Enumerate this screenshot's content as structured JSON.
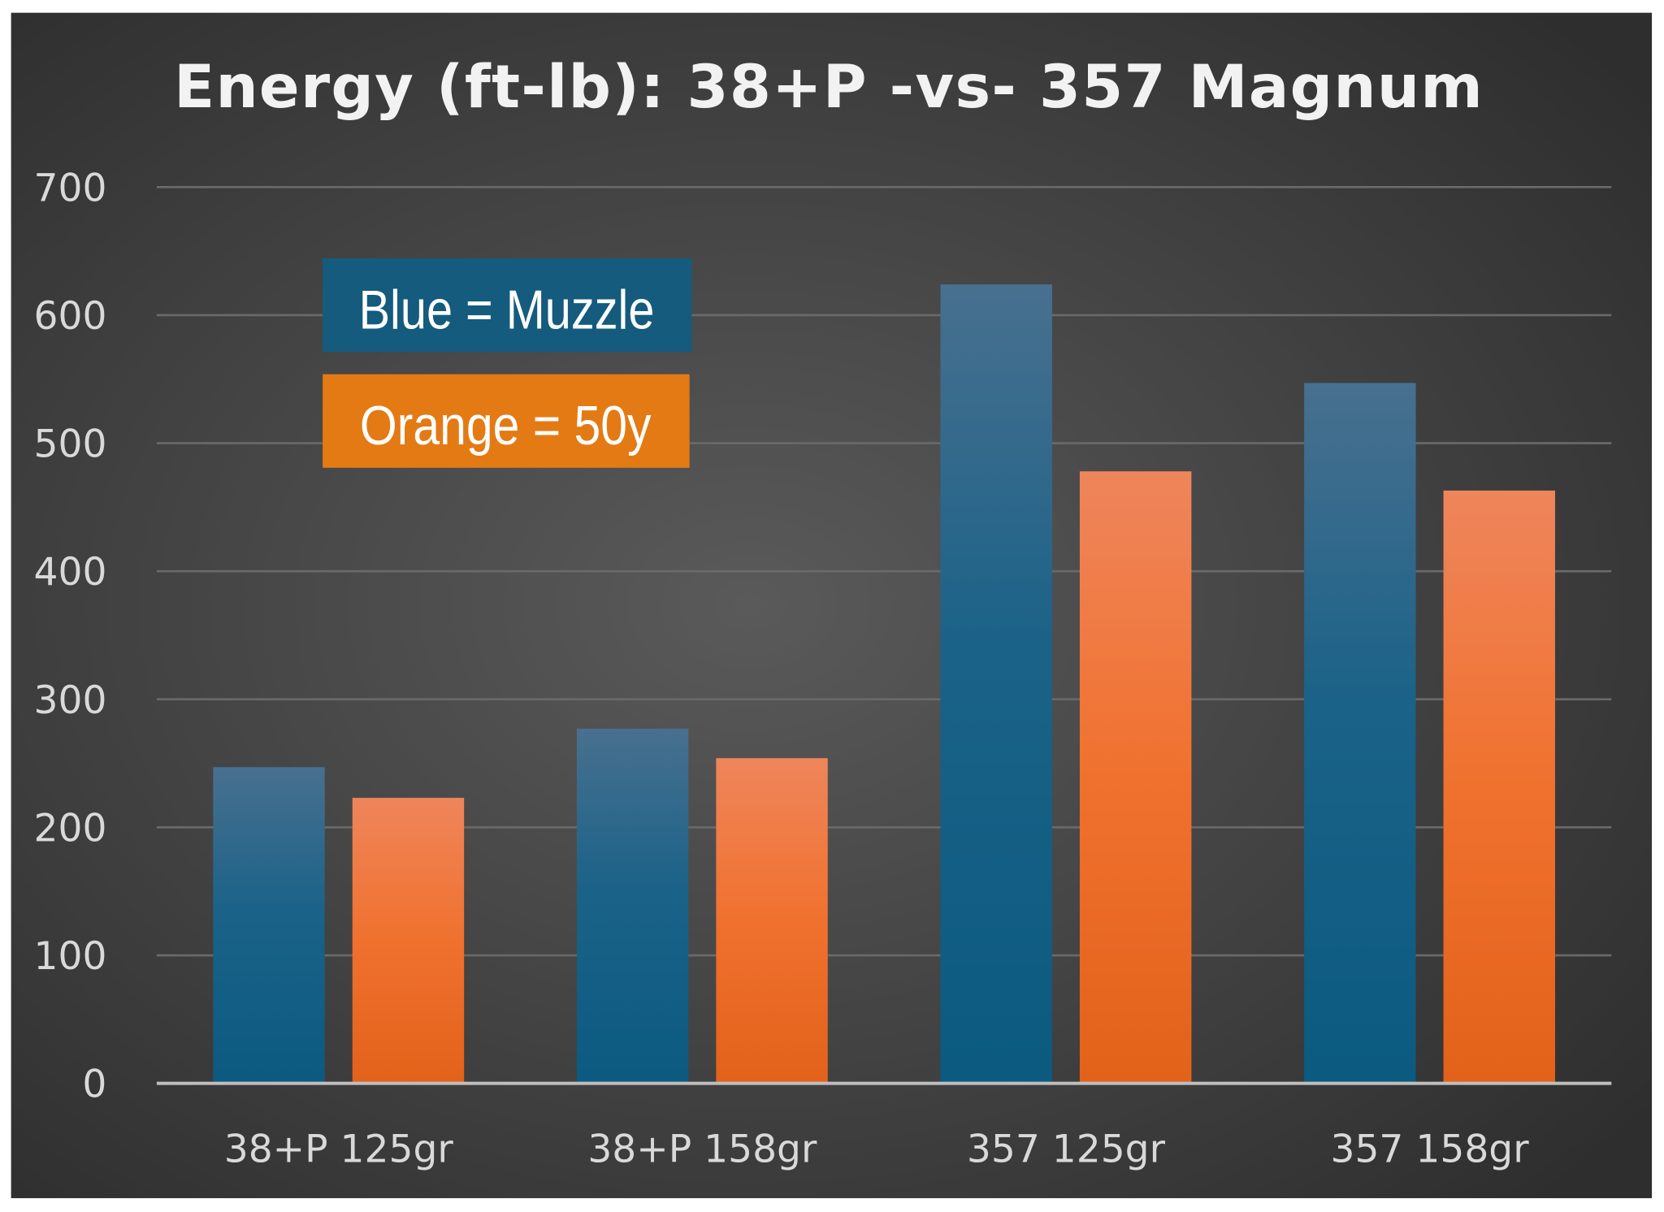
{
  "chart_data": {
    "type": "bar",
    "title": "Energy (ft-lb): 38+P -vs- 357 Magnum",
    "xlabel": "",
    "ylabel": "",
    "ylim": [
      0,
      700
    ],
    "yticks": [
      "0",
      "100",
      "200",
      "300",
      "400",
      "500",
      "600",
      "700"
    ],
    "grid": true,
    "categories": [
      "38+P 125gr",
      "38+P 158gr",
      "357 125gr",
      "357 158gr"
    ],
    "series": [
      {
        "key": "muzzle",
        "color": "#1f6089",
        "values": [
          247,
          277,
          624,
          547
        ]
      },
      {
        "key": "50y",
        "color": "#ef7b3c",
        "values": [
          223,
          254,
          478,
          463
        ]
      }
    ],
    "legend_boxes": [
      {
        "text": "Blue = Muzzle",
        "color": "#145b7e"
      },
      {
        "text": "Orange = 50y",
        "color": "#e47a14"
      }
    ],
    "legend_placement": "top-left"
  }
}
